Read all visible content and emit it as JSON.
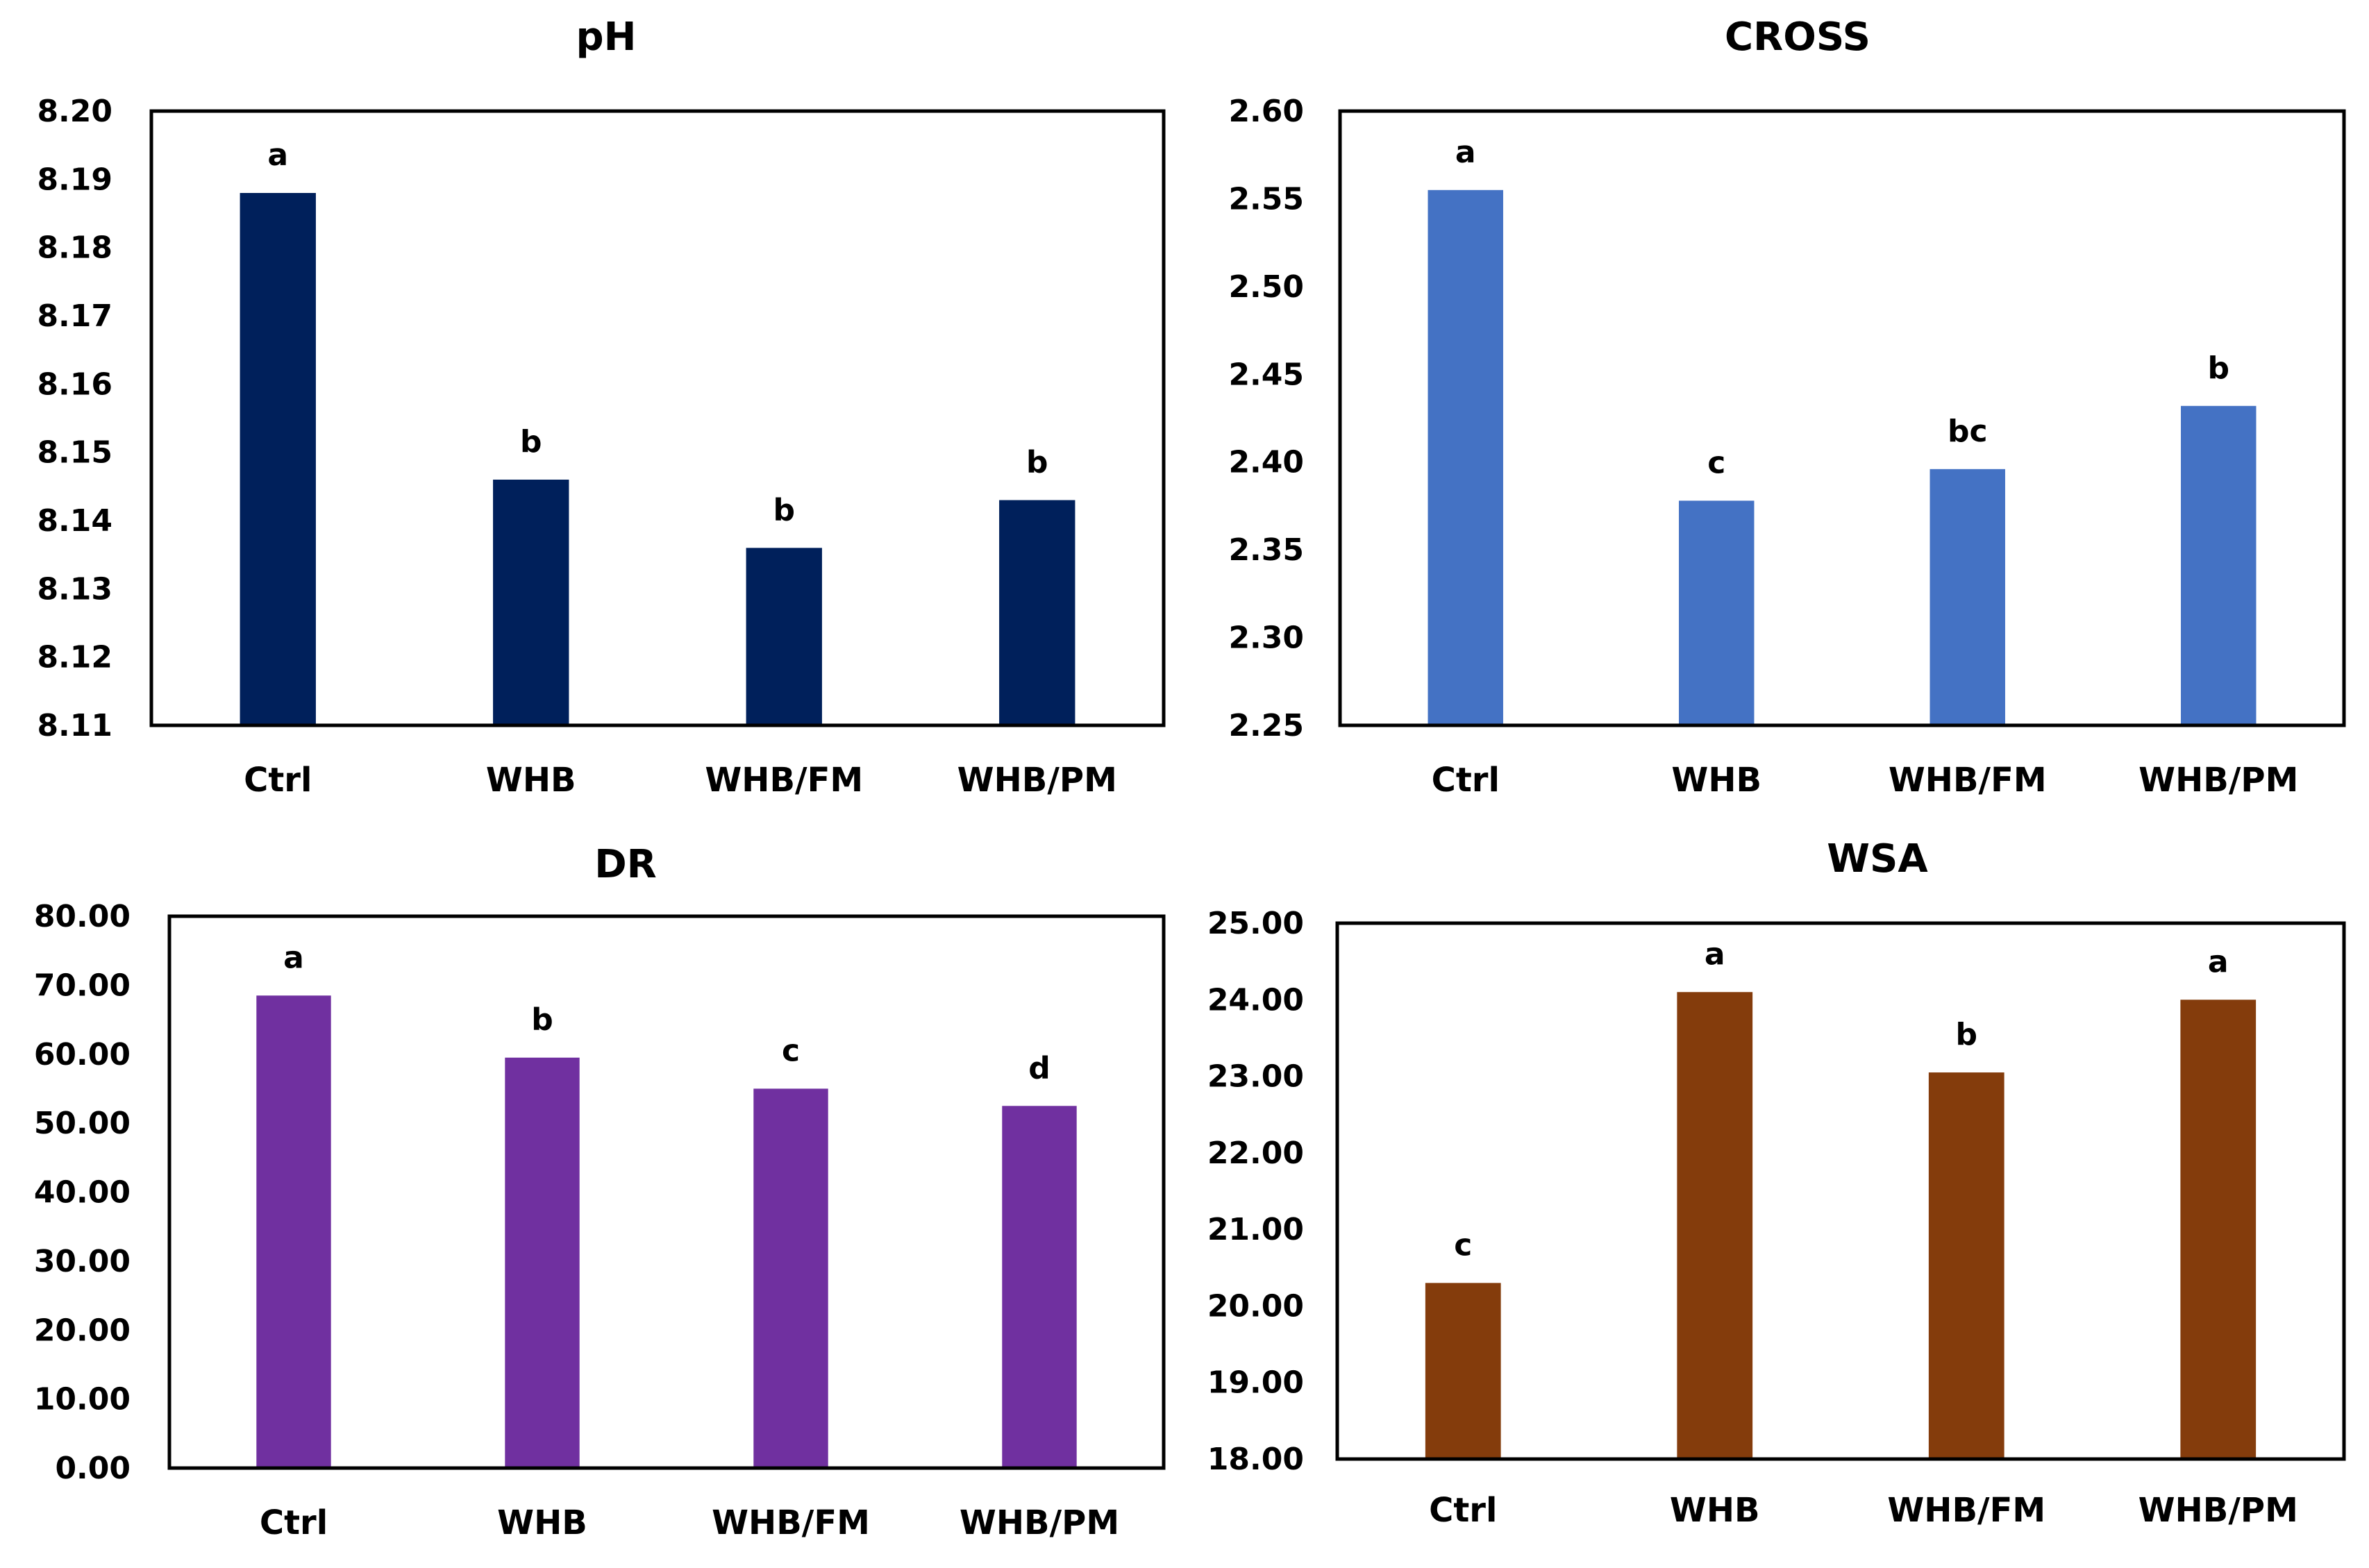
{
  "chart_data": [
    {
      "type": "bar",
      "title": "pH",
      "categories": [
        "Ctrl",
        "WHB",
        "WHB/FM",
        "WHB/PM"
      ],
      "values": [
        8.188,
        8.146,
        8.136,
        8.143
      ],
      "letters": [
        "a",
        "b",
        "b",
        "b"
      ],
      "ylim": [
        8.11,
        8.2
      ],
      "yticks": [
        "8.11",
        "8.12",
        "8.13",
        "8.14",
        "8.15",
        "8.16",
        "8.17",
        "8.18",
        "8.19",
        "8.20"
      ],
      "color": "#00205B",
      "xlabel": "",
      "ylabel": "",
      "grid": false
    },
    {
      "type": "bar",
      "title": "CROSS",
      "categories": [
        "Ctrl",
        "WHB",
        "WHB/FM",
        "WHB/PM"
      ],
      "values": [
        2.555,
        2.378,
        2.396,
        2.432
      ],
      "letters": [
        "a",
        "c",
        "bc",
        "b"
      ],
      "ylim": [
        2.25,
        2.6
      ],
      "yticks": [
        "2.25",
        "2.30",
        "2.35",
        "2.40",
        "2.45",
        "2.50",
        "2.55",
        "2.60"
      ],
      "color": "#4472C4",
      "xlabel": "",
      "ylabel": "",
      "grid": false
    },
    {
      "type": "bar",
      "title": "DR",
      "categories": [
        "Ctrl",
        "WHB",
        "WHB/FM",
        "WHB/PM"
      ],
      "values": [
        68.5,
        59.5,
        55.0,
        52.5
      ],
      "letters": [
        "a",
        "b",
        "c",
        "d"
      ],
      "ylim": [
        0,
        80
      ],
      "yticks": [
        "0.00",
        "10.00",
        "20.00",
        "30.00",
        "40.00",
        "50.00",
        "60.00",
        "70.00",
        "80.00"
      ],
      "color": "#7030A0",
      "xlabel": "",
      "ylabel": "",
      "grid": false
    },
    {
      "type": "bar",
      "title": "WSA",
      "categories": [
        "Ctrl",
        "WHB",
        "WHB/FM",
        "WHB/PM"
      ],
      "values": [
        20.3,
        24.1,
        23.05,
        24.0
      ],
      "letters": [
        "c",
        "a",
        "b",
        "a"
      ],
      "ylim": [
        18,
        25
      ],
      "yticks": [
        "18.00",
        "19.00",
        "20.00",
        "21.00",
        "22.00",
        "23.00",
        "24.00",
        "25.00"
      ],
      "color": "#843C0C",
      "xlabel": "",
      "ylabel": "",
      "grid": false
    }
  ]
}
